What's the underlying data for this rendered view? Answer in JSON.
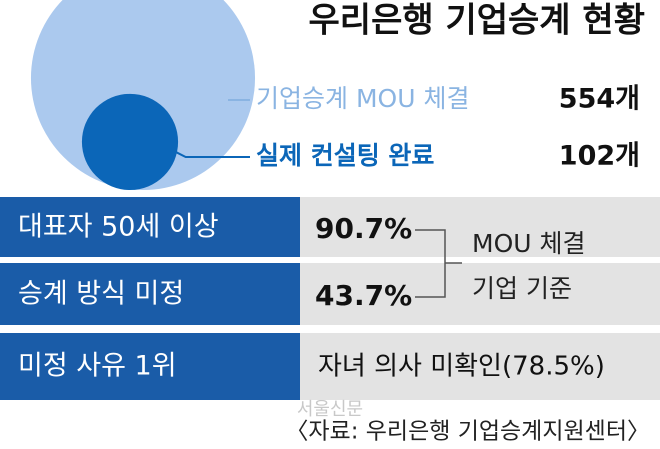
{
  "chart_data": {
    "type": "bubble",
    "title": "우리은행 기업승계 현황",
    "categories": [
      "기업승계 MOU 체결",
      "실제 컨설팅 완료"
    ],
    "values": [
      554,
      102
    ],
    "value_labels": [
      "554개",
      "102개"
    ],
    "colors": [
      "#abc9ee",
      "#0b66b8"
    ],
    "label_colors": [
      "#8ab4e2",
      "#0b66b8"
    ]
  },
  "rows": [
    {
      "label": "대표자 50세 이상",
      "value": "90.7%"
    },
    {
      "label": "승계 방식 미정",
      "value": "43.7%"
    },
    {
      "label": "미정 사유 1위",
      "value": "자녀 의사 미확인(78.5%)"
    }
  ],
  "bracket_note": [
    "MOU 체결",
    "기업 기준"
  ],
  "watermark": "서울신문",
  "source": "〈자료: 우리은행 기업승계지원센터〉"
}
